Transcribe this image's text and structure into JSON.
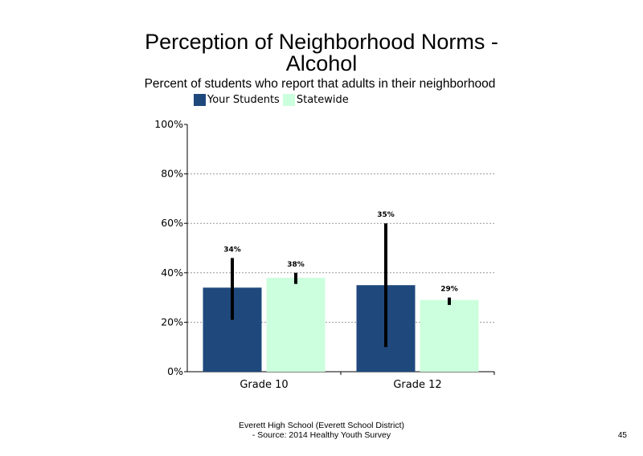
{
  "slide": {
    "title_line1": "Perception of Neighborhood Norms -",
    "title_line2": "Alcohol",
    "subtitle": "Percent of students who report that adults in their neighborhood",
    "footer_line1": "Everett High School (Everett School District)",
    "footer_line2": "- Source: 2014 Healthy Youth Survey",
    "page_number": "45"
  },
  "chart_data": {
    "type": "bar",
    "title": "Perception of Neighborhood Norms - Alcohol",
    "subtitle": "Percent of students who report that adults in their neighborhood",
    "categories": [
      "Grade 10",
      "Grade 12"
    ],
    "series": [
      {
        "name": "Your Students",
        "color": "#1F497D",
        "values": [
          34,
          35
        ],
        "labels": [
          "34%",
          "35%"
        ],
        "error_low": [
          21,
          10
        ],
        "error_high": [
          46,
          60
        ]
      },
      {
        "name": "Statewide",
        "color": "#CCFFDD",
        "values": [
          38,
          29
        ],
        "labels": [
          "38%",
          "29%"
        ],
        "error_low": [
          35.5,
          27
        ],
        "error_high": [
          40,
          30
        ]
      }
    ],
    "ylim": [
      0,
      100
    ],
    "yticks": [
      0,
      20,
      40,
      60,
      80,
      100
    ],
    "ytick_labels": [
      "0%",
      "20%",
      "40%",
      "60%",
      "80%",
      "100%"
    ],
    "grid": true,
    "legend_position": "top"
  }
}
